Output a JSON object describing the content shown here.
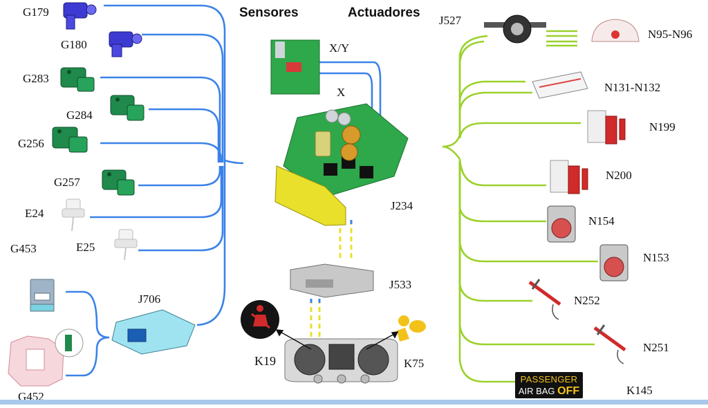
{
  "headers": {
    "sensors": "Sensores",
    "actuators": "Actuadores"
  },
  "sensors": [
    {
      "id": "G179"
    },
    {
      "id": "G180"
    },
    {
      "id": "G283"
    },
    {
      "id": "G284"
    },
    {
      "id": "G256"
    },
    {
      "id": "G257"
    },
    {
      "id": "E24"
    },
    {
      "id": "G453"
    },
    {
      "id": "E25"
    },
    {
      "id": "G452"
    }
  ],
  "actuators": [
    {
      "id": "J527"
    },
    {
      "id": "N95-N96"
    },
    {
      "id": "N131-N132"
    },
    {
      "id": "N199"
    },
    {
      "id": "N200"
    },
    {
      "id": "N154"
    },
    {
      "id": "N153"
    },
    {
      "id": "N252"
    },
    {
      "id": "N251"
    },
    {
      "id": "K145"
    }
  ],
  "center": {
    "xy": "X/Y",
    "x": "X",
    "j234": "J234",
    "j706": "J706",
    "j533": "J533",
    "k19": "K19",
    "k75": "K75"
  },
  "k145_display": {
    "line1": "PASSENGER",
    "line2a": "AIR BAG ",
    "line2b": "OFF"
  },
  "colors": {
    "sensor_line": "#3b82e8",
    "actuator_line": "#9bd12a",
    "sensor_green": "#1f8a4c",
    "sensor_blue": "#3c3ad0",
    "pcb_green": "#2ea84a",
    "connector_yellow": "#e8e02a"
  }
}
